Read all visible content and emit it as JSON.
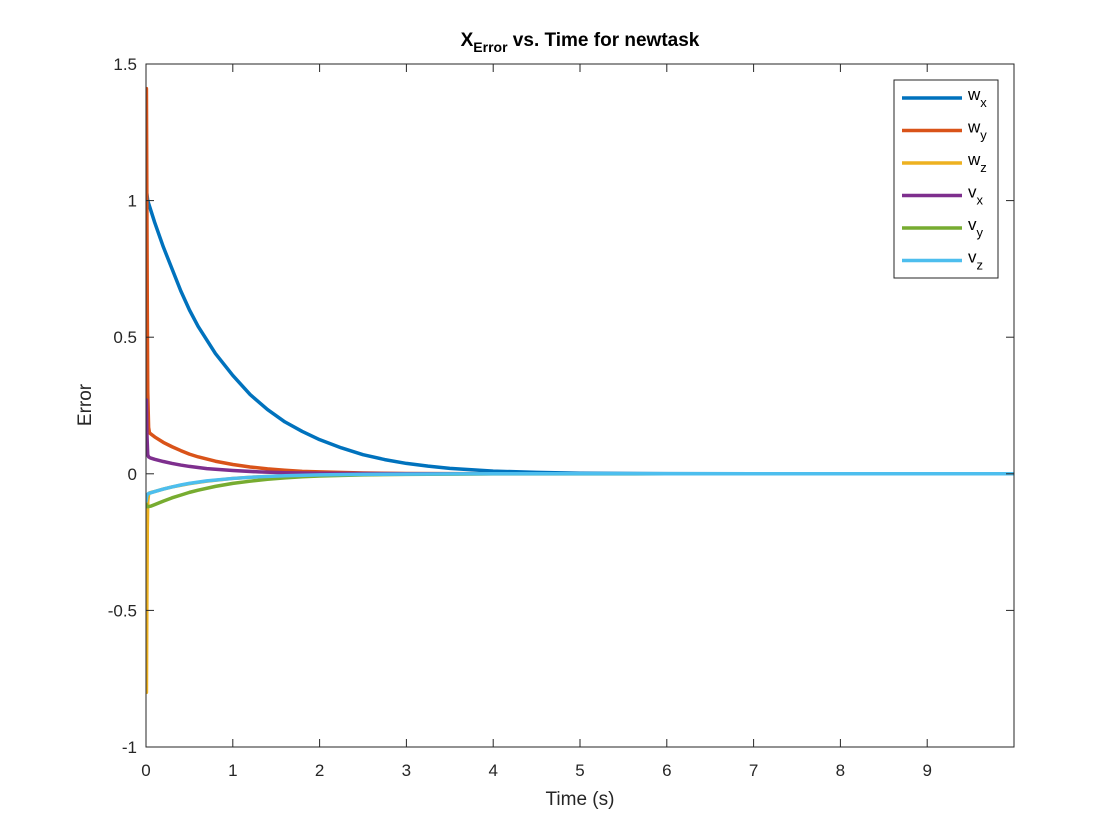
{
  "chart_data": {
    "type": "line",
    "title": {
      "main": "X",
      "subscript": "Error",
      "rest": " vs. Time for newtask"
    },
    "xlabel": "Time (s)",
    "ylabel": "Error",
    "xlim": [
      0,
      10
    ],
    "ylim": [
      -1,
      1.5
    ],
    "xticks": [
      0,
      1,
      2,
      3,
      4,
      5,
      6,
      7,
      8,
      9
    ],
    "xtick_labels": [
      "0",
      "1",
      "2",
      "3",
      "4",
      "5",
      "6",
      "7",
      "8",
      "9"
    ],
    "yticks": [
      -1,
      -0.5,
      0,
      0.5,
      1,
      1.5
    ],
    "ytick_labels": [
      "-1",
      "-0.5",
      "0",
      "0.5",
      "1",
      "1.5"
    ],
    "grid": false,
    "legend_position": "top-right",
    "series": [
      {
        "name": "wx",
        "label_base": "w",
        "label_sub": "x",
        "color": "#0072BD",
        "x": [
          0,
          0.02,
          0.05,
          0.1,
          0.2,
          0.3,
          0.4,
          0.5,
          0.6,
          0.8,
          1.0,
          1.2,
          1.4,
          1.6,
          1.8,
          2.0,
          2.25,
          2.5,
          2.75,
          3.0,
          3.25,
          3.5,
          4.0,
          4.5,
          5.0,
          6.0,
          7.0,
          8.0,
          9.0,
          10.0
        ],
        "y": [
          1.05,
          1.0,
          0.97,
          0.92,
          0.83,
          0.75,
          0.67,
          0.6,
          0.54,
          0.44,
          0.36,
          0.29,
          0.235,
          0.19,
          0.155,
          0.125,
          0.095,
          0.07,
          0.052,
          0.038,
          0.028,
          0.02,
          0.01,
          0.005,
          0.002,
          0.0005,
          0.0001,
          0,
          0,
          0
        ]
      },
      {
        "name": "wy",
        "label_base": "w",
        "label_sub": "y",
        "color": "#D95319",
        "x": [
          0,
          0.005,
          0.01,
          0.015,
          0.02,
          0.03,
          0.04,
          0.06,
          0.1,
          0.2,
          0.3,
          0.4,
          0.5,
          0.6,
          0.8,
          1.0,
          1.2,
          1.4,
          1.6,
          1.8,
          2.0,
          2.5,
          3.0,
          4.0,
          5.0,
          7.0,
          10.0
        ],
        "y": [
          0.3,
          1.41,
          1.0,
          0.6,
          0.3,
          0.17,
          0.15,
          0.145,
          0.135,
          0.115,
          0.099,
          0.085,
          0.072,
          0.062,
          0.046,
          0.034,
          0.025,
          0.018,
          0.013,
          0.009,
          0.007,
          0.003,
          0.001,
          0.0002,
          0,
          0,
          0
        ]
      },
      {
        "name": "wz",
        "label_base": "w",
        "label_sub": "z",
        "color": "#EDB120",
        "x": [
          0,
          0.005,
          0.01,
          0.015,
          0.02,
          0.03,
          0.04,
          0.06,
          0.1,
          0.2,
          0.3,
          0.5,
          0.7,
          1.0,
          1.3,
          1.6,
          2.0,
          2.5,
          3.0,
          4.0,
          6.0,
          10.0
        ],
        "y": [
          -0.2,
          -0.8,
          -0.45,
          -0.2,
          -0.1,
          -0.075,
          -0.07,
          -0.068,
          -0.065,
          -0.056,
          -0.048,
          -0.036,
          -0.027,
          -0.017,
          -0.011,
          -0.007,
          -0.004,
          -0.002,
          -0.001,
          0,
          0,
          0
        ]
      },
      {
        "name": "vx",
        "label_base": "v",
        "label_sub": "x",
        "color": "#7E2F8E",
        "x": [
          0,
          0.005,
          0.01,
          0.02,
          0.03,
          0.05,
          0.1,
          0.2,
          0.3,
          0.4,
          0.5,
          0.7,
          1.0,
          1.3,
          1.6,
          2.0,
          2.5,
          3.0,
          4.0,
          6.0,
          10.0
        ],
        "y": [
          0.1,
          0.27,
          0.15,
          0.07,
          0.062,
          0.058,
          0.053,
          0.045,
          0.038,
          0.032,
          0.027,
          0.019,
          0.012,
          0.007,
          0.004,
          0.002,
          0.001,
          0.0004,
          0,
          0,
          0
        ]
      },
      {
        "name": "vy",
        "label_base": "v",
        "label_sub": "y",
        "color": "#77AC30",
        "x": [
          0,
          0.01,
          0.03,
          0.06,
          0.1,
          0.2,
          0.3,
          0.4,
          0.5,
          0.6,
          0.8,
          1.0,
          1.2,
          1.4,
          1.6,
          1.8,
          2.0,
          2.5,
          3.0,
          4.0,
          6.0,
          10.0
        ],
        "y": [
          -0.11,
          -0.12,
          -0.12,
          -0.118,
          -0.113,
          -0.1,
          -0.088,
          -0.078,
          -0.068,
          -0.06,
          -0.046,
          -0.035,
          -0.027,
          -0.02,
          -0.015,
          -0.011,
          -0.008,
          -0.004,
          -0.002,
          -0.0003,
          0,
          0
        ]
      },
      {
        "name": "vz",
        "label_base": "v",
        "label_sub": "z",
        "color": "#4DBEEE",
        "x": [
          0,
          0.005,
          0.01,
          0.02,
          0.03,
          0.05,
          0.1,
          0.2,
          0.3,
          0.4,
          0.5,
          0.7,
          1.0,
          1.3,
          1.6,
          2.0,
          2.5,
          3.0,
          4.0,
          6.0,
          10.0
        ],
        "y": [
          -0.1,
          -0.09,
          -0.08,
          -0.075,
          -0.072,
          -0.07,
          -0.065,
          -0.056,
          -0.048,
          -0.041,
          -0.035,
          -0.026,
          -0.017,
          -0.011,
          -0.007,
          -0.004,
          -0.002,
          -0.001,
          0,
          0,
          0
        ]
      }
    ]
  }
}
